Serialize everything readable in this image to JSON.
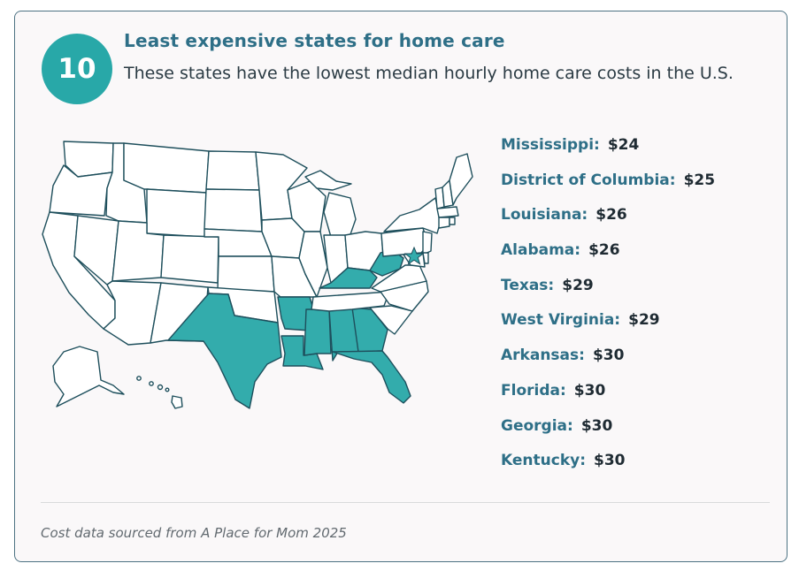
{
  "header": {
    "rank": "10",
    "title": "Least expensive states for home care",
    "subtitle": "These states have the lowest median hourly home care costs in the U.S."
  },
  "map": {
    "highlight_color": "#33acac",
    "highlighted_states": [
      "Mississippi",
      "District of Columbia",
      "Louisiana",
      "Alabama",
      "Texas",
      "West Virginia",
      "Arkansas",
      "Florida",
      "Georgia",
      "Kentucky"
    ]
  },
  "states": [
    {
      "name": "Mississippi:",
      "cost": "$24"
    },
    {
      "name": "District of Columbia:",
      "cost": "$25"
    },
    {
      "name": "Louisiana:",
      "cost": "$26"
    },
    {
      "name": "Alabama:",
      "cost": "$26"
    },
    {
      "name": "Texas:",
      "cost": "$29"
    },
    {
      "name": "West Virginia:",
      "cost": "$29"
    },
    {
      "name": "Arkansas:",
      "cost": "$30"
    },
    {
      "name": "Florida:",
      "cost": "$30"
    },
    {
      "name": "Georgia:",
      "cost": "$30"
    },
    {
      "name": "Kentucky:",
      "cost": "$30"
    }
  ],
  "footer": {
    "source": "Cost data sourced from A Place for Mom 2025"
  }
}
